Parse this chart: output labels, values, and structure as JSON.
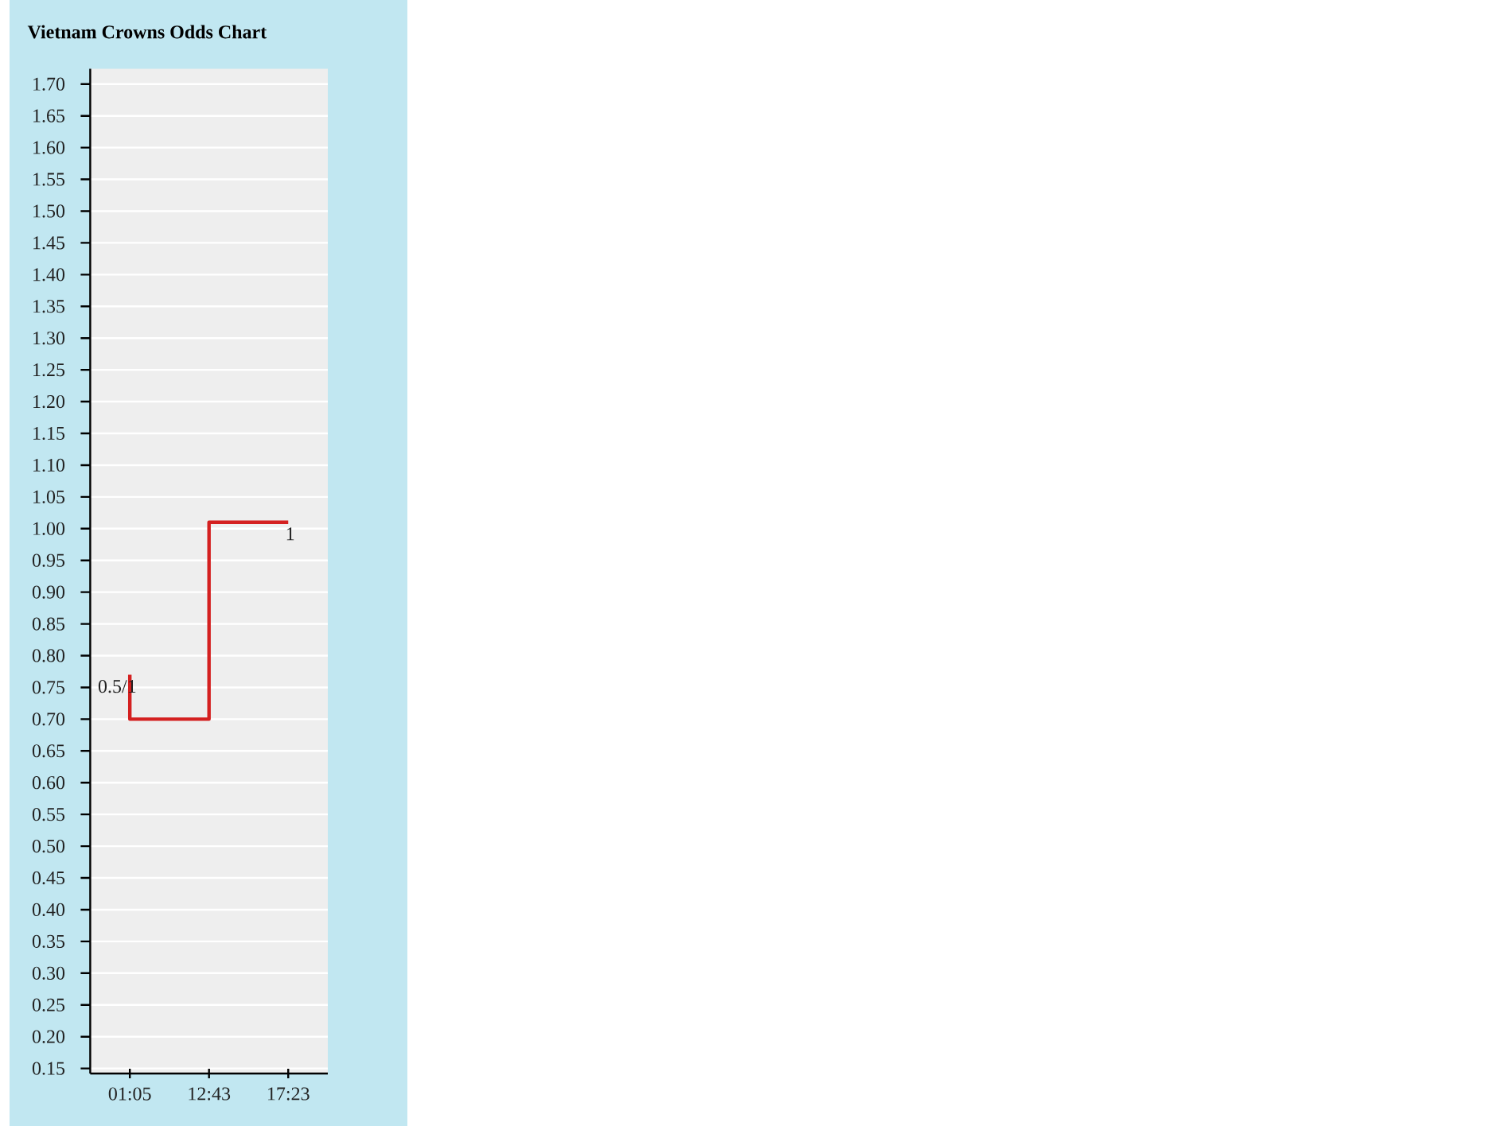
{
  "chart_data": {
    "type": "step",
    "title": "Vietnam Crowns Odds Chart",
    "categories": [
      "01:05",
      "12:43",
      "17:23"
    ],
    "values": [
      0.77,
      0.7,
      1.01
    ],
    "color": "#d42020",
    "ylim": [
      0.142,
      1.724
    ],
    "yticks": [
      {
        "value": 0.15,
        "label": "0.15"
      },
      {
        "value": 0.2,
        "label": "0.20"
      },
      {
        "value": 0.25,
        "label": "0.25"
      },
      {
        "value": 0.3,
        "label": "0.30"
      },
      {
        "value": 0.35,
        "label": "0.35"
      },
      {
        "value": 0.4,
        "label": "0.40"
      },
      {
        "value": 0.45,
        "label": "0.45"
      },
      {
        "value": 0.5,
        "label": "0.50"
      },
      {
        "value": 0.55,
        "label": "0.55"
      },
      {
        "value": 0.6,
        "label": "0.60"
      },
      {
        "value": 0.65,
        "label": "0.65"
      },
      {
        "value": 0.7,
        "label": "0.70"
      },
      {
        "value": 0.75,
        "label": "0.75"
      },
      {
        "value": 0.8,
        "label": "0.80"
      },
      {
        "value": 0.85,
        "label": "0.85"
      },
      {
        "value": 0.9,
        "label": "0.90"
      },
      {
        "value": 0.95,
        "label": "0.95"
      },
      {
        "value": 1.0,
        "label": "1.00"
      },
      {
        "value": 1.05,
        "label": "1.05"
      },
      {
        "value": 1.1,
        "label": "1.10"
      },
      {
        "value": 1.15,
        "label": "1.15"
      },
      {
        "value": 1.2,
        "label": "1.20"
      },
      {
        "value": 1.25,
        "label": "1.25"
      },
      {
        "value": 1.3,
        "label": "1.30"
      },
      {
        "value": 1.35,
        "label": "1.35"
      },
      {
        "value": 1.4,
        "label": "1.40"
      },
      {
        "value": 1.45,
        "label": "1.45"
      },
      {
        "value": 1.5,
        "label": "1.50"
      },
      {
        "value": 1.55,
        "label": "1.55"
      },
      {
        "value": 1.6,
        "label": "1.60"
      },
      {
        "value": 1.65,
        "label": "1.65"
      },
      {
        "value": 1.7,
        "label": "1.70"
      }
    ],
    "grid": "y",
    "annotations": [
      {
        "text": "0.5/1",
        "x": "01:05",
        "y": 0.77
      },
      {
        "text": "1",
        "x": "17:23",
        "y": 1.01
      }
    ]
  }
}
